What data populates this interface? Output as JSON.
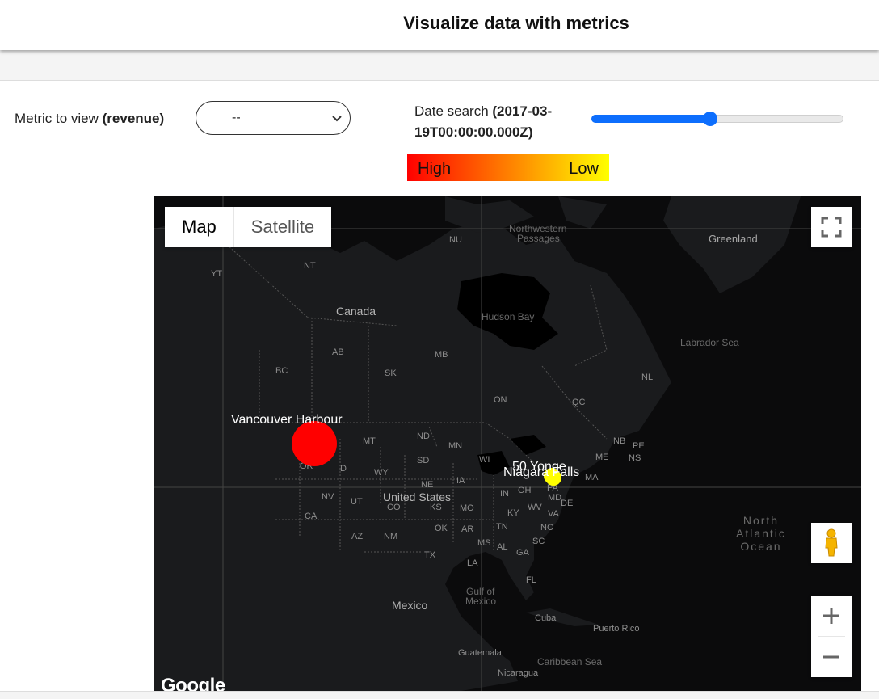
{
  "header": {
    "title": "Visualize data with metrics"
  },
  "metric": {
    "label": "Metric to view ",
    "label_bold": "(revenue)",
    "selected": "--"
  },
  "date": {
    "label": "Date search ",
    "value": "(2017-03-19T00:00:00.000Z)",
    "slider_fraction": 0.47
  },
  "legend": {
    "high": "High",
    "low": "Low",
    "high_color": "#ff0000",
    "low_color": "#ffff00"
  },
  "map": {
    "type_buttons": {
      "map": "Map",
      "satellite": "Satellite"
    },
    "google": "Google",
    "labels": {
      "nu": "NU",
      "nt": "NT",
      "yt": "YT",
      "canada": "Canada",
      "ab": "AB",
      "bc": "BC",
      "mb": "MB",
      "sk": "SK",
      "on": "ON",
      "qc": "QC",
      "nl": "NL",
      "nb": "NB",
      "pe": "PE",
      "ns": "NS",
      "me": "ME",
      "greenland": "Greenland",
      "northwestern": "Northwestern",
      "passages": "Passages",
      "hudson_bay": "Hudson Bay",
      "labrador_sea": "Labrador Sea",
      "mt": "MT",
      "nd": "ND",
      "sd": "SD",
      "mn": "MN",
      "wi": "WI",
      "ia": "IA",
      "ne": "NE",
      "wy": "WY",
      "id": "ID",
      "or": "OR",
      "nv": "NV",
      "ut": "UT",
      "co": "CO",
      "ks": "KS",
      "mo": "MO",
      "ca": "CA",
      "az": "AZ",
      "nm": "NM",
      "ok": "OK",
      "ar": "AR",
      "tx": "TX",
      "la": "LA",
      "ms": "MS",
      "al": "AL",
      "ga": "GA",
      "tn": "TN",
      "ky": "KY",
      "in": "IN",
      "oh": "OH",
      "wv": "WV",
      "va": "VA",
      "nc": "NC",
      "sc": "SC",
      "fl": "FL",
      "pa": "PA",
      "md": "MD",
      "de": "DE",
      "ma": "MA",
      "united_states": "United States",
      "mexico": "Mexico",
      "gulf_of": "Gulf of",
      "gulf_mexico": "Mexico",
      "cuba": "Cuba",
      "puerto_rico": "Puerto Rico",
      "guatemala": "Guatemala",
      "caribbean_sea": "Caribbean Sea",
      "nicaragua": "Nicaragua",
      "north": "North",
      "atlantic": "Atlantic",
      "ocean": "Ocean"
    },
    "markers": [
      {
        "name": "Vancouver Harbour",
        "color": "#ff0000"
      },
      {
        "name": "50 Yonge",
        "color": "#ffff00"
      },
      {
        "name": "Niagara Falls",
        "color": "#ffff00"
      }
    ]
  }
}
